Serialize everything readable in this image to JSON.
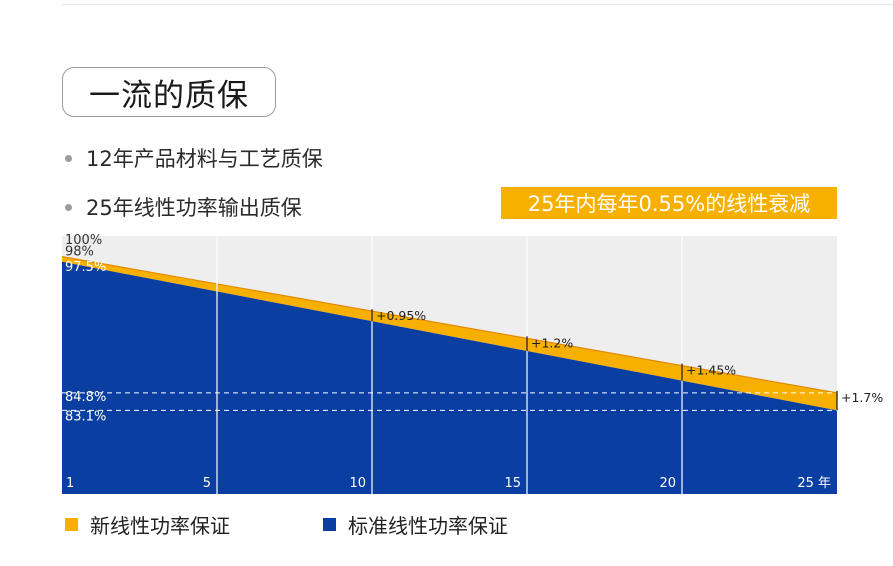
{
  "title": "一流的质保",
  "bullets": [
    "12年产品材料与工艺质保",
    "25年线性功率输出质保"
  ],
  "highlight_text": "25年内每年0.55%的线性衰减",
  "legend": [
    {
      "label": "新线性功率保证",
      "color": "#f7b000"
    },
    {
      "label": "标准线性功率保证",
      "color": "#0a3ea0"
    }
  ],
  "chart_data": {
    "type": "area",
    "x_ticks": [
      "1",
      "5",
      "10",
      "15",
      "20",
      "25 年"
    ],
    "x_range": [
      0,
      25
    ],
    "y_range": [
      75,
      100
    ],
    "y_labels": [
      "100%",
      "98%",
      "97.5%",
      "84.8%",
      "83.1%"
    ],
    "series": [
      {
        "name": "新线性功率保证",
        "x": [
          0,
          25
        ],
        "y": [
          98,
          84.8
        ],
        "color": "#f7b000"
      },
      {
        "name": "标准线性功率保证",
        "x": [
          0,
          25
        ],
        "y": [
          97.5,
          83.1
        ],
        "color": "#0a3ea0"
      }
    ],
    "annotations": [
      {
        "x": 10,
        "text": "+0.95%"
      },
      {
        "x": 15,
        "text": "+1.2%"
      },
      {
        "x": 20,
        "text": "+1.45%"
      },
      {
        "x": 25,
        "text": "+1.7%"
      }
    ],
    "reference_lines": [
      84.8,
      83.1
    ],
    "background": "#eeeeee"
  }
}
